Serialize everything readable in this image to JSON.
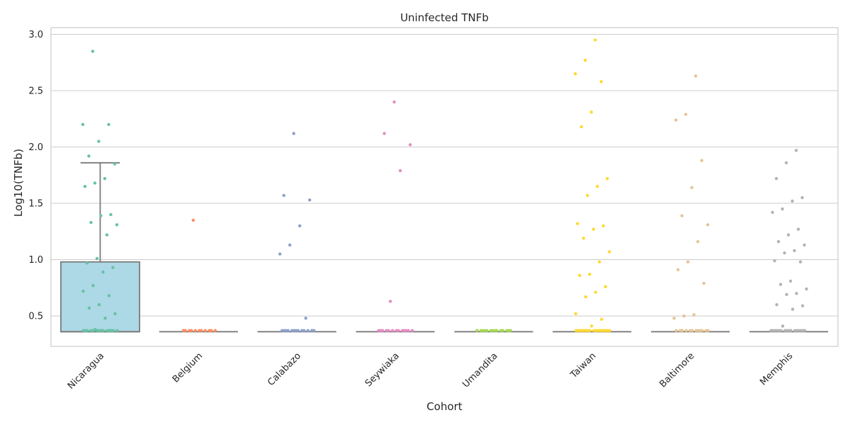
{
  "chart_data": {
    "type": "box+strip",
    "title": "Uninfected TNFb",
    "xlabel": "Cohort",
    "ylabel": "Log10(TNFb)",
    "ylim": [
      0.23,
      3.06
    ],
    "yticks": [
      0.5,
      1.0,
      1.5,
      2.0,
      2.5,
      3.0
    ],
    "ytick_labels": [
      "0.5",
      "1.0",
      "1.5",
      "2.0",
      "2.5",
      "3.0"
    ],
    "grid": "y",
    "categories": [
      "Nicaragua",
      "Belgium",
      "Calabazo",
      "Seywiaka",
      "Umandita",
      "Taiwan",
      "Baltimore",
      "Memphis"
    ],
    "colors": [
      "#66c2a5",
      "#fc8d62",
      "#8da0cb",
      "#e78ac3",
      "#a6d854",
      "#ffd92f",
      "#e5c494",
      "#b3b3b3"
    ],
    "box_fill": "#add8e6",
    "box_edge": "#7a7a7a",
    "boxes": [
      {
        "q1": 0.36,
        "median": 0.36,
        "q3": 0.98,
        "whisker_low": 0.36,
        "whisker_high": 1.86
      },
      {
        "q1": 0.36,
        "median": 0.36,
        "q3": 0.36,
        "whisker_low": 0.36,
        "whisker_high": 0.36
      },
      {
        "q1": 0.36,
        "median": 0.36,
        "q3": 0.36,
        "whisker_low": 0.36,
        "whisker_high": 0.36
      },
      {
        "q1": 0.36,
        "median": 0.36,
        "q3": 0.36,
        "whisker_low": 0.36,
        "whisker_high": 0.36
      },
      {
        "q1": 0.36,
        "median": 0.36,
        "q3": 0.36,
        "whisker_low": 0.36,
        "whisker_high": 0.36
      },
      {
        "q1": 0.36,
        "median": 0.36,
        "q3": 0.36,
        "whisker_low": 0.36,
        "whisker_high": 0.36
      },
      {
        "q1": 0.36,
        "median": 0.36,
        "q3": 0.36,
        "whisker_low": 0.36,
        "whisker_high": 0.36
      },
      {
        "q1": 0.36,
        "median": 0.36,
        "q3": 0.36,
        "whisker_low": 0.36,
        "whisker_high": 0.36
      }
    ],
    "points": [
      [
        2.85,
        2.2,
        2.2,
        2.05,
        1.92,
        1.85,
        1.72,
        1.68,
        1.65,
        1.4,
        1.39,
        1.33,
        1.31,
        1.22,
        1.01,
        0.97,
        0.93,
        0.89,
        0.77,
        0.72,
        0.68,
        0.6,
        0.57,
        0.52,
        0.48,
        0.38,
        0.37,
        0.37,
        0.37,
        0.37,
        0.37,
        0.37,
        0.37,
        0.37,
        0.37,
        0.37,
        0.37,
        0.37,
        0.37,
        0.37
      ],
      [
        1.35,
        0.37,
        0.37,
        0.37,
        0.37,
        0.37,
        0.37,
        0.37,
        0.37,
        0.37,
        0.37,
        0.37
      ],
      [
        2.12,
        1.57,
        1.53,
        1.3,
        1.13,
        1.05,
        0.48,
        0.37,
        0.37,
        0.37,
        0.37,
        0.37,
        0.37,
        0.37,
        0.37,
        0.37,
        0.37,
        0.37,
        0.37,
        0.37
      ],
      [
        2.4,
        2.12,
        2.02,
        1.79,
        0.63,
        0.37,
        0.37,
        0.37,
        0.37,
        0.37,
        0.37,
        0.37,
        0.37,
        0.37,
        0.37,
        0.37,
        0.37,
        0.37
      ],
      [
        0.37,
        0.37,
        0.37,
        0.37,
        0.37,
        0.37,
        0.37,
        0.37,
        0.37,
        0.37,
        0.37,
        0.37,
        0.37,
        0.37
      ],
      [
        2.95,
        2.77,
        2.65,
        2.58,
        2.31,
        2.18,
        1.72,
        1.65,
        1.57,
        1.32,
        1.3,
        1.27,
        1.19,
        1.07,
        0.98,
        0.87,
        0.86,
        0.76,
        0.71,
        0.67,
        0.52,
        0.47,
        0.41,
        0.37,
        0.37,
        0.37,
        0.37,
        0.37,
        0.37,
        0.37,
        0.37,
        0.37,
        0.37,
        0.37,
        0.37,
        0.37,
        0.37,
        0.37,
        0.37,
        0.37
      ],
      [
        2.63,
        2.29,
        2.24,
        1.88,
        1.64,
        1.39,
        1.31,
        1.16,
        0.98,
        0.91,
        0.79,
        0.51,
        0.5,
        0.48,
        0.37,
        0.37,
        0.37,
        0.37,
        0.37,
        0.37,
        0.37,
        0.37,
        0.37,
        0.37,
        0.37,
        0.37
      ],
      [
        1.97,
        1.86,
        1.72,
        1.55,
        1.52,
        1.45,
        1.42,
        1.27,
        1.22,
        1.16,
        1.13,
        1.08,
        1.06,
        0.99,
        0.98,
        0.81,
        0.78,
        0.74,
        0.7,
        0.69,
        0.6,
        0.59,
        0.56,
        0.41,
        0.37,
        0.37,
        0.37,
        0.37,
        0.37,
        0.37,
        0.37,
        0.37,
        0.37,
        0.37,
        0.37,
        0.37,
        0.37,
        0.37,
        0.37,
        0.37
      ]
    ]
  }
}
